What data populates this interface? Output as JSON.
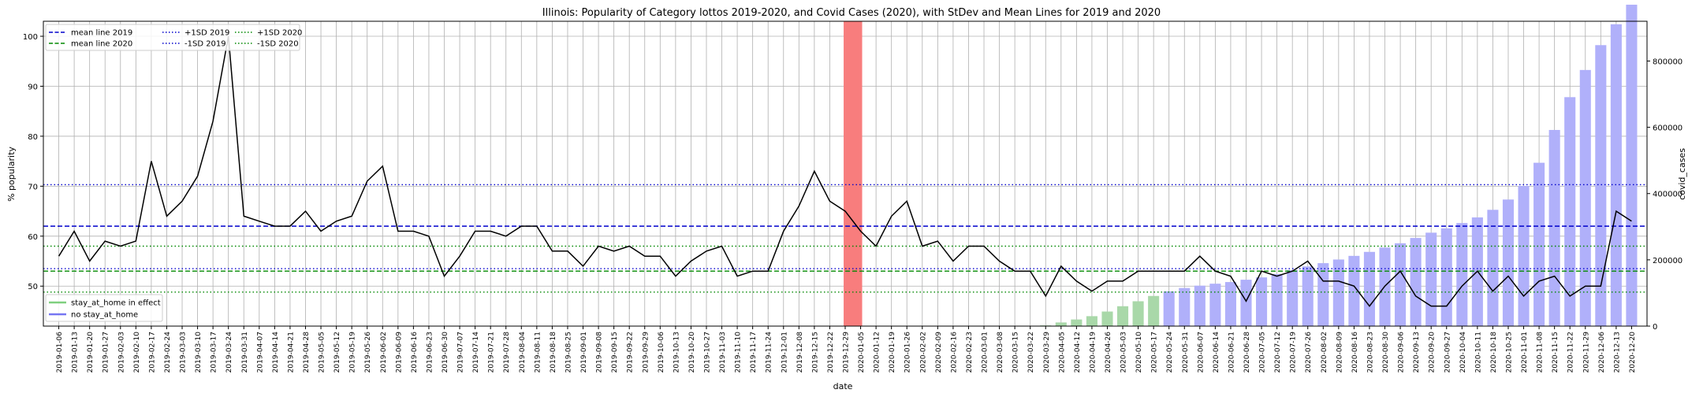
{
  "chart_data": {
    "type": "bar",
    "title": "Illinois: Popularity of Category lottos 2019-2020, and Covid Cases (2020), with StDev and Mean Lines for 2019 and 2020",
    "xlabel": "date",
    "ylabel": "% popularity",
    "ylabel_right": "covid_cases",
    "ylim": [
      42,
      103
    ],
    "ylim_right": [
      0,
      920000
    ],
    "yticks": [
      50,
      60,
      70,
      80,
      90,
      100
    ],
    "yticks_right": [
      0,
      200000,
      400000,
      600000,
      800000
    ],
    "grid": true,
    "x": [
      "2019-01-06",
      "2019-01-13",
      "2019-01-20",
      "2019-01-27",
      "2019-02-03",
      "2019-02-10",
      "2019-02-17",
      "2019-02-24",
      "2019-03-03",
      "2019-03-10",
      "2019-03-17",
      "2019-03-24",
      "2019-03-31",
      "2019-04-07",
      "2019-04-14",
      "2019-04-21",
      "2019-04-28",
      "2019-05-05",
      "2019-05-12",
      "2019-05-19",
      "2019-05-26",
      "2019-06-02",
      "2019-06-09",
      "2019-06-16",
      "2019-06-23",
      "2019-06-30",
      "2019-07-07",
      "2019-07-14",
      "2019-07-21",
      "2019-07-28",
      "2019-08-04",
      "2019-08-11",
      "2019-08-18",
      "2019-08-25",
      "2019-09-01",
      "2019-09-08",
      "2019-09-15",
      "2019-09-22",
      "2019-09-29",
      "2019-10-06",
      "2019-10-13",
      "2019-10-20",
      "2019-10-27",
      "2019-11-03",
      "2019-11-10",
      "2019-11-17",
      "2019-11-24",
      "2019-12-01",
      "2019-12-08",
      "2019-12-15",
      "2019-12-22",
      "2019-12-29",
      "2020-01-05",
      "2020-01-12",
      "2020-01-19",
      "2020-01-26",
      "2020-02-02",
      "2020-02-09",
      "2020-02-16",
      "2020-02-23",
      "2020-03-01",
      "2020-03-08",
      "2020-03-15",
      "2020-03-22",
      "2020-03-29",
      "2020-04-05",
      "2020-04-12",
      "2020-04-19",
      "2020-04-26",
      "2020-05-03",
      "2020-05-10",
      "2020-05-17",
      "2020-05-24",
      "2020-05-31",
      "2020-06-07",
      "2020-06-14",
      "2020-06-21",
      "2020-06-28",
      "2020-07-05",
      "2020-07-12",
      "2020-07-19",
      "2020-07-26",
      "2020-08-02",
      "2020-08-09",
      "2020-08-16",
      "2020-08-23",
      "2020-08-30",
      "2020-09-06",
      "2020-09-13",
      "2020-09-20",
      "2020-09-27",
      "2020-10-04",
      "2020-10-11",
      "2020-10-18",
      "2020-10-25",
      "2020-11-01",
      "2020-11-08",
      "2020-11-15",
      "2020-11-22",
      "2020-11-29",
      "2020-12-06",
      "2020-12-13",
      "2020-12-20"
    ],
    "series": [
      {
        "name": "popularity",
        "type": "line",
        "color": "#000000",
        "values": [
          56,
          61,
          55,
          59,
          58,
          59,
          75,
          64,
          67,
          72,
          83,
          100,
          64,
          63,
          62,
          62,
          65,
          61,
          63,
          64,
          71,
          74,
          61,
          61,
          60,
          52,
          56,
          61,
          61,
          60,
          62,
          62,
          57,
          57,
          54,
          58,
          57,
          58,
          56,
          56,
          52,
          55,
          57,
          58,
          52,
          53,
          53,
          61,
          66,
          73,
          67,
          65,
          61,
          58,
          64,
          67,
          58,
          59,
          55,
          58,
          58,
          55,
          53,
          53,
          48,
          54,
          51,
          49,
          51,
          51,
          53,
          53,
          53,
          53,
          56,
          53,
          52,
          47,
          53,
          52,
          53,
          55,
          51,
          51,
          50,
          46,
          50,
          53,
          48,
          46,
          46,
          50,
          53,
          49,
          52,
          48,
          51,
          52,
          48,
          50,
          50,
          65,
          63
        ]
      },
      {
        "name": "covid_cases",
        "type": "bar",
        "axis": "right",
        "values": [
          0,
          0,
          0,
          0,
          0,
          0,
          0,
          0,
          0,
          0,
          0,
          0,
          0,
          0,
          0,
          0,
          0,
          0,
          0,
          0,
          0,
          0,
          0,
          0,
          0,
          0,
          0,
          0,
          0,
          0,
          0,
          0,
          0,
          0,
          0,
          0,
          0,
          0,
          0,
          0,
          0,
          0,
          0,
          0,
          0,
          0,
          0,
          0,
          0,
          0,
          0,
          0,
          0,
          0,
          0,
          0,
          0,
          0,
          0,
          0,
          0,
          0,
          0,
          0,
          2000,
          11000,
          20000,
          30000,
          44000,
          60000,
          75000,
          91000,
          105000,
          115000,
          122000,
          128000,
          133000,
          140000,
          147000,
          157000,
          169000,
          180000,
          190000,
          201000,
          212000,
          224000,
          237000,
          250000,
          266000,
          282000,
          295000,
          311000,
          328000,
          351000,
          382000,
          423000,
          493000,
          592000,
          691000,
          773000,
          848000,
          911000,
          970000
        ],
        "stay_at_home_from": "2020-03-22",
        "stay_at_home_to": "2020-05-24"
      }
    ],
    "reference_lines": [
      {
        "name": "mean line 2019",
        "value": 62,
        "style": "dashed",
        "color": "#0000cc"
      },
      {
        "name": "mean line 2020",
        "value": 53,
        "style": "dashed",
        "color": "#008800"
      },
      {
        "name": "+1SD 2019",
        "value": 70.3,
        "style": "dotted",
        "color": "#0000cc"
      },
      {
        "name": "-1SD 2019",
        "value": 53.5,
        "style": "dotted",
        "color": "#0000cc"
      },
      {
        "name": "+1SD 2020",
        "value": 58,
        "style": "dotted",
        "color": "#008800"
      },
      {
        "name": "-1SD 2020",
        "value": 48.8,
        "style": "dotted",
        "color": "#008800"
      }
    ],
    "highlight_band": {
      "from": "2019-12-29",
      "to": "2020-01-05",
      "color": "#f87d7d"
    },
    "colors": {
      "bars_lockdown": "#a9d8a9",
      "bars_normal": "#b0b0fa",
      "line": "#000000"
    },
    "legend": {
      "top_left": [
        "mean line 2019",
        "mean line 2020",
        "+1SD 2019",
        "-1SD 2019",
        "+1SD 2020",
        "-1SD 2020"
      ],
      "bottom_left": [
        {
          "label": "stay_at_home in effect",
          "color": "#7fcf7f"
        },
        {
          "label": "no stay_at_home",
          "color": "#7777f2"
        }
      ]
    }
  }
}
